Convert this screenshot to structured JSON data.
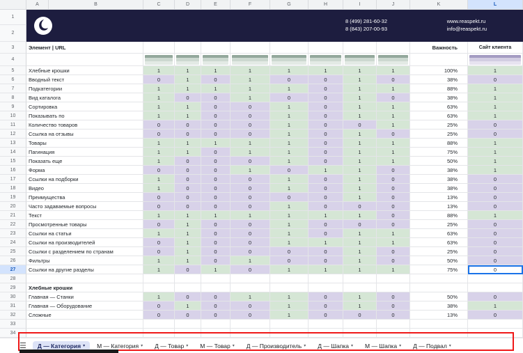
{
  "colors": {
    "present": "#d5e6d5",
    "absent": "#d8d2e9",
    "selection": "#1a73e8",
    "banner_bg": "#1d1d3f",
    "annotation": "#ef1818"
  },
  "banner": {
    "phones": [
      "8 (499) 281-60-32",
      "8 (843) 207-00-93"
    ],
    "website": "www.reaspekt.ru",
    "email": "info@reaspekt.ru",
    "row_numbers": [
      "1",
      "2"
    ]
  },
  "grid": {
    "column_letters": [
      "A",
      "B",
      "C",
      "D",
      "E",
      "F",
      "G",
      "H",
      "I",
      "J",
      "K",
      "L"
    ],
    "header": {
      "row_number": "3",
      "element_label": "Элемент | URL",
      "importance_label": "Важность",
      "client_label": "Сайт клиента"
    },
    "thumbnail_row": {
      "row_number": "4",
      "competitor_thumbnails": 8,
      "client_thumbnail": true
    },
    "selection": {
      "column": "L",
      "row": 27
    },
    "rows": [
      {
        "n": 5,
        "type": "data",
        "label": "Хлебные крошки",
        "values": [
          1,
          1,
          1,
          1,
          1,
          1,
          1,
          1
        ],
        "importance": "100%",
        "client": 1
      },
      {
        "n": 6,
        "type": "data",
        "label": "Вводный текст",
        "values": [
          0,
          1,
          0,
          1,
          0,
          0,
          1,
          0
        ],
        "importance": "38%",
        "client": 0
      },
      {
        "n": 7,
        "type": "data",
        "label": "Подкатегории",
        "values": [
          1,
          1,
          1,
          1,
          1,
          0,
          1,
          1
        ],
        "importance": "88%",
        "client": 1
      },
      {
        "n": 8,
        "type": "data",
        "label": "Вид каталога",
        "values": [
          1,
          0,
          0,
          1,
          0,
          0,
          1,
          0
        ],
        "importance": "38%",
        "client": 1
      },
      {
        "n": 9,
        "type": "data",
        "label": "Сортировка",
        "values": [
          1,
          1,
          0,
          0,
          1,
          0,
          1,
          1
        ],
        "importance": "63%",
        "client": 1
      },
      {
        "n": 10,
        "type": "data",
        "label": "Показывать по",
        "values": [
          1,
          1,
          0,
          0,
          1,
          0,
          1,
          1
        ],
        "importance": "63%",
        "client": 1
      },
      {
        "n": 11,
        "type": "data",
        "label": "Количество товаров",
        "values": [
          0,
          0,
          0,
          0,
          1,
          0,
          0,
          1
        ],
        "importance": "25%",
        "client": 0
      },
      {
        "n": 12,
        "type": "data",
        "label": "Ссылка на отзывы",
        "values": [
          0,
          0,
          0,
          0,
          1,
          0,
          1,
          0
        ],
        "importance": "25%",
        "client": 0
      },
      {
        "n": 13,
        "type": "data",
        "label": "Товары",
        "values": [
          1,
          1,
          1,
          1,
          1,
          0,
          1,
          1
        ],
        "importance": "88%",
        "client": 1
      },
      {
        "n": 14,
        "type": "data",
        "label": "Пагинация",
        "values": [
          1,
          1,
          0,
          1,
          1,
          0,
          1,
          1
        ],
        "importance": "75%",
        "client": 1
      },
      {
        "n": 15,
        "type": "data",
        "label": "Показать еще",
        "values": [
          1,
          0,
          0,
          0,
          1,
          0,
          1,
          1
        ],
        "importance": "50%",
        "client": 1
      },
      {
        "n": 16,
        "type": "data",
        "label": "Форма",
        "values": [
          0,
          0,
          0,
          1,
          0,
          1,
          1,
          0
        ],
        "importance": "38%",
        "client": 1
      },
      {
        "n": 17,
        "type": "data",
        "label": "Ссылки на подборки",
        "values": [
          1,
          0,
          0,
          0,
          1,
          0,
          1,
          0
        ],
        "importance": "38%",
        "client": 0
      },
      {
        "n": 18,
        "type": "data",
        "label": "Видео",
        "values": [
          1,
          0,
          0,
          0,
          1,
          0,
          1,
          0
        ],
        "importance": "38%",
        "client": 0
      },
      {
        "n": 19,
        "type": "data",
        "label": "Преимущества",
        "values": [
          0,
          0,
          0,
          0,
          0,
          0,
          1,
          0
        ],
        "importance": "13%",
        "client": 0
      },
      {
        "n": 20,
        "type": "data",
        "label": "Часто задаваемые вопросы",
        "values": [
          0,
          0,
          0,
          0,
          1,
          0,
          0,
          0
        ],
        "importance": "13%",
        "client": 0
      },
      {
        "n": 21,
        "type": "data",
        "label": "Текст",
        "values": [
          1,
          1,
          1,
          1,
          1,
          1,
          1,
          0
        ],
        "importance": "88%",
        "client": 1
      },
      {
        "n": 22,
        "type": "data",
        "label": "Просмотренные товары",
        "values": [
          0,
          1,
          0,
          0,
          1,
          0,
          0,
          0
        ],
        "importance": "25%",
        "client": 0
      },
      {
        "n": 23,
        "type": "data",
        "label": "Ссылки на статьи",
        "values": [
          1,
          1,
          0,
          0,
          1,
          0,
          1,
          1
        ],
        "importance": "63%",
        "client": 0
      },
      {
        "n": 24,
        "type": "data",
        "label": "Ссылки на производителей",
        "values": [
          0,
          1,
          0,
          0,
          1,
          1,
          1,
          1
        ],
        "importance": "63%",
        "client": 0
      },
      {
        "n": 25,
        "type": "data",
        "label": "Ссылки с разделением по странам",
        "values": [
          0,
          1,
          0,
          0,
          0,
          0,
          1,
          0
        ],
        "importance": "25%",
        "client": 0
      },
      {
        "n": 26,
        "type": "data",
        "label": "Фильтры",
        "values": [
          1,
          1,
          0,
          1,
          0,
          0,
          1,
          0
        ],
        "importance": "50%",
        "client": 0
      },
      {
        "n": 27,
        "type": "data",
        "label": "Ссылки на другие разделы",
        "values": [
          1,
          0,
          1,
          0,
          1,
          1,
          1,
          1
        ],
        "importance": "75%",
        "client": 0
      },
      {
        "n": 28,
        "type": "empty"
      },
      {
        "n": 29,
        "type": "section",
        "label": "Хлебные крошки"
      },
      {
        "n": 30,
        "type": "data",
        "label": "Главная — Станки",
        "values": [
          1,
          0,
          0,
          1,
          1,
          0,
          1,
          0
        ],
        "importance": "50%",
        "client": 0
      },
      {
        "n": 31,
        "type": "data",
        "label": "Главная — Оборудование",
        "values": [
          0,
          1,
          0,
          0,
          1,
          0,
          1,
          0
        ],
        "importance": "38%",
        "client": 1
      },
      {
        "n": 32,
        "type": "data",
        "label": "Сложные",
        "values": [
          0,
          0,
          0,
          0,
          1,
          0,
          0,
          0
        ],
        "importance": "13%",
        "client": 0
      },
      {
        "n": 33,
        "type": "empty"
      },
      {
        "n": 34,
        "type": "empty"
      }
    ]
  },
  "sheet_tabs": {
    "all_sheets_icon": "☰",
    "dropdown_icon": "▾",
    "tabs": [
      {
        "label": "Д — Категория",
        "active": true
      },
      {
        "label": "М — Категория",
        "active": false
      },
      {
        "label": "Д — Товар",
        "active": false
      },
      {
        "label": "М — Товар",
        "active": false
      },
      {
        "label": "Д — Производитель",
        "active": false
      },
      {
        "label": "Д — Шапка",
        "active": false
      },
      {
        "label": "М — Шапка",
        "active": false
      },
      {
        "label": "Д — Подвал",
        "active": false
      }
    ]
  }
}
